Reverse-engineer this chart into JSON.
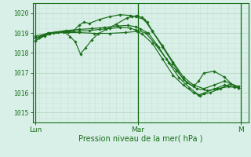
{
  "bg_color": "#d8f0e8",
  "grid_color_major": "#b8d8c8",
  "grid_color_minor": "#cce4d8",
  "line_color": "#1a6e1a",
  "xlabel": "Pression niveau de la mer( hPa )",
  "ylim": [
    1014.5,
    1020.5
  ],
  "yticks": [
    1015,
    1016,
    1017,
    1018,
    1019,
    1020
  ],
  "xtick_labels": [
    "Lun",
    "Mar",
    "M"
  ],
  "xtick_positions": [
    0.0,
    2.0,
    4.0
  ],
  "xlim": [
    -0.05,
    4.15
  ],
  "lines": [
    {
      "x": [
        0.0,
        0.08,
        0.18,
        0.28,
        0.45,
        0.65,
        0.85,
        1.05,
        1.25,
        1.45,
        1.65,
        1.85,
        1.95,
        2.15,
        2.35,
        2.55,
        2.75,
        2.95,
        3.15,
        3.35,
        3.55,
        3.75,
        3.95
      ],
      "y": [
        1018.6,
        1018.75,
        1018.88,
        1019.0,
        1019.05,
        1019.05,
        1019.1,
        1019.12,
        1019.18,
        1019.22,
        1019.28,
        1019.25,
        1019.15,
        1019.0,
        1018.4,
        1017.7,
        1017.1,
        1016.5,
        1016.2,
        1016.1,
        1016.2,
        1016.3,
        1016.25
      ]
    },
    {
      "x": [
        0.0,
        0.12,
        0.25,
        0.4,
        0.6,
        0.85,
        1.1,
        1.35,
        1.6,
        1.8,
        1.95,
        2.05,
        2.2,
        2.4,
        2.6,
        2.8,
        3.0,
        3.2,
        3.4,
        3.6,
        3.8,
        3.95
      ],
      "y": [
        1018.85,
        1018.9,
        1019.0,
        1019.05,
        1019.12,
        1019.18,
        1019.22,
        1019.28,
        1019.35,
        1019.38,
        1019.32,
        1019.2,
        1019.0,
        1018.3,
        1017.5,
        1016.75,
        1016.25,
        1015.85,
        1016.0,
        1016.2,
        1016.45,
        1016.3
      ]
    },
    {
      "x": [
        0.0,
        0.18,
        0.35,
        0.55,
        0.68,
        0.78,
        0.88,
        0.98,
        1.1,
        1.22,
        1.38,
        1.58,
        1.78,
        1.88,
        1.98,
        2.08,
        2.18,
        2.28,
        2.48,
        2.68,
        2.88,
        3.08,
        3.28,
        3.48,
        3.68,
        3.95
      ],
      "y": [
        1018.6,
        1018.85,
        1019.0,
        1019.08,
        1018.82,
        1018.55,
        1017.95,
        1018.25,
        1018.65,
        1018.95,
        1019.18,
        1019.45,
        1019.75,
        1019.82,
        1019.88,
        1019.78,
        1019.55,
        1019.1,
        1018.35,
        1017.55,
        1016.8,
        1016.38,
        1016.2,
        1016.38,
        1016.58,
        1016.3
      ]
    },
    {
      "x": [
        0.0,
        0.28,
        0.55,
        0.75,
        0.85,
        0.95,
        1.05,
        1.25,
        1.45,
        1.65,
        1.85,
        1.95,
        2.12,
        2.28,
        2.48,
        2.68,
        2.88,
        3.08,
        3.18,
        3.28,
        3.48,
        3.68,
        3.88,
        3.95
      ],
      "y": [
        1018.75,
        1018.98,
        1019.08,
        1019.12,
        1019.38,
        1019.55,
        1019.48,
        1019.68,
        1019.82,
        1019.92,
        1019.88,
        1019.82,
        1019.68,
        1019.08,
        1018.28,
        1017.48,
        1016.68,
        1016.3,
        1016.58,
        1016.98,
        1017.08,
        1016.78,
        1016.3,
        1016.25
      ]
    },
    {
      "x": [
        0.0,
        0.28,
        0.55,
        0.85,
        1.15,
        1.45,
        1.75,
        1.98,
        2.08,
        2.28,
        2.48,
        2.68,
        2.88,
        3.08,
        3.18,
        3.28,
        3.48,
        3.68,
        3.88,
        3.95
      ],
      "y": [
        1018.75,
        1018.98,
        1019.02,
        1019.02,
        1018.98,
        1018.98,
        1019.02,
        1019.08,
        1018.95,
        1018.48,
        1017.68,
        1016.88,
        1016.38,
        1016.0,
        1015.88,
        1015.98,
        1016.18,
        1016.38,
        1016.28,
        1016.25
      ]
    }
  ]
}
